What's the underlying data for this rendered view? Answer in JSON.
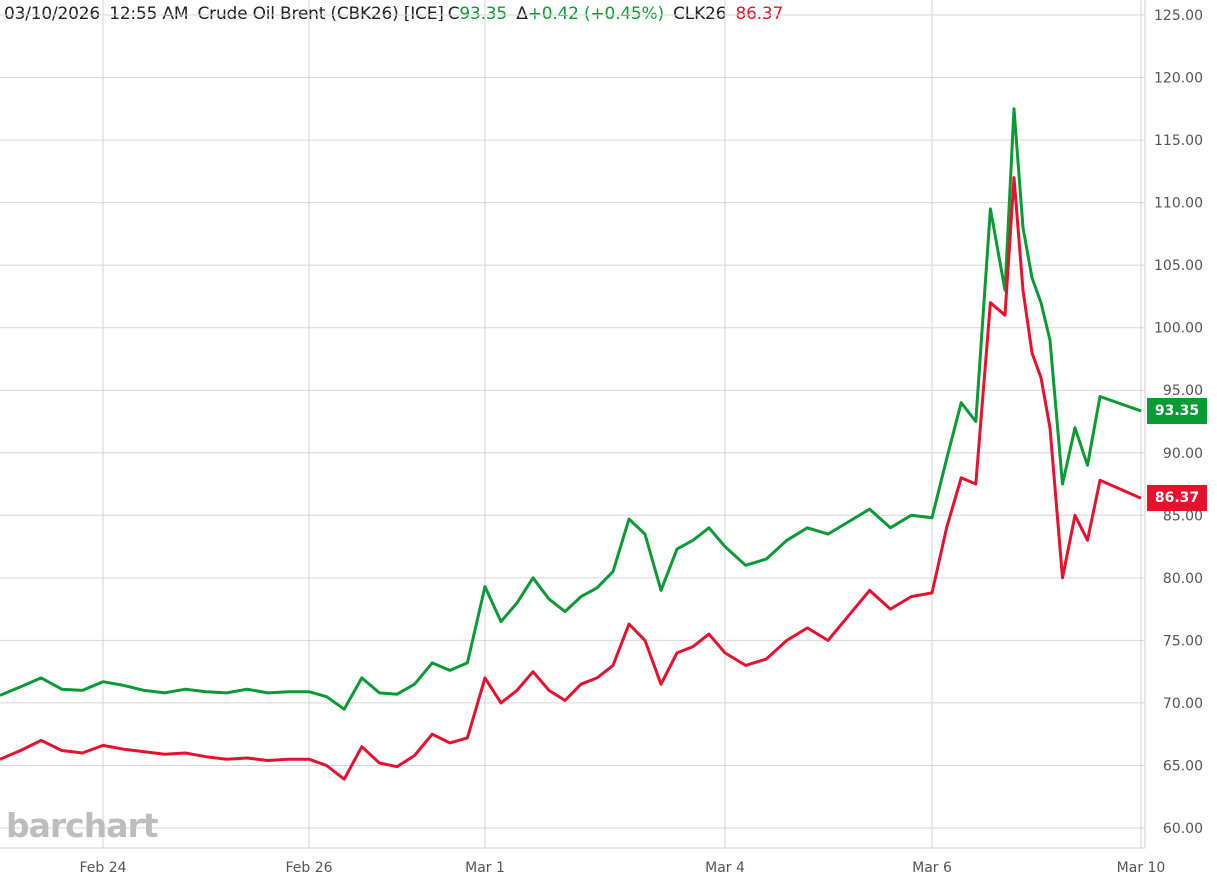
{
  "header": {
    "date": "03/10/2026",
    "time": "12:55 AM",
    "instrument": "Crude Oil Brent (CBK26) [ICE]",
    "close_label": "C",
    "close_value": "93.35",
    "change_label": "Δ",
    "change_value": "+0.42 (+0.45%)",
    "compare_symbol": "CLK26",
    "compare_value": "86.37"
  },
  "logo": "barchart",
  "colors": {
    "brent": "#0a9b34",
    "wti": "#e8112d",
    "grid": "#d6d6d6"
  },
  "chart_data": {
    "type": "line",
    "y_ticks": [
      "125.00",
      "120.00",
      "115.00",
      "110.00",
      "105.00",
      "100.00",
      "95.00",
      "90.00",
      "85.00",
      "80.00",
      "75.00",
      "70.00",
      "65.00",
      "60.00"
    ],
    "x_ticks": [
      "Feb 24",
      "Feb 26",
      "Mar 1",
      "Mar 4",
      "Mar 6",
      "Mar 10"
    ],
    "ylim": [
      60,
      125
    ],
    "legend": "header",
    "grid": true,
    "series": [
      {
        "name": "CBK26",
        "color": "#0a9b34",
        "last_label": "93.35",
        "points": [
          [
            "Feb 23",
            70.6
          ],
          [
            "Feb 23",
            71.3
          ],
          [
            "Feb 23",
            72.0
          ],
          [
            "Feb 23",
            71.1
          ],
          [
            "Feb 23",
            71.0
          ],
          [
            "Feb 24",
            71.7
          ],
          [
            "Feb 24",
            71.4
          ],
          [
            "Feb 24",
            71.0
          ],
          [
            "Feb 24",
            70.8
          ],
          [
            "Feb 24",
            71.1
          ],
          [
            "Feb 25",
            70.9
          ],
          [
            "Feb 25",
            70.8
          ],
          [
            "Feb 25",
            71.1
          ],
          [
            "Feb 25",
            70.8
          ],
          [
            "Feb 25",
            70.9
          ],
          [
            "Feb 26",
            70.9
          ],
          [
            "Feb 26",
            70.5
          ],
          [
            "Feb 26",
            69.5
          ],
          [
            "Feb 26",
            72.0
          ],
          [
            "Feb 26",
            70.8
          ],
          [
            "Feb 27",
            70.7
          ],
          [
            "Feb 27",
            71.5
          ],
          [
            "Feb 27",
            73.2
          ],
          [
            "Feb 27",
            72.6
          ],
          [
            "Feb 27",
            73.2
          ],
          [
            "Mar 1",
            79.3
          ],
          [
            "Mar 1",
            76.5
          ],
          [
            "Mar 1",
            78.0
          ],
          [
            "Mar 1",
            80.0
          ],
          [
            "Mar 1",
            78.3
          ],
          [
            "Mar 2",
            77.3
          ],
          [
            "Mar 2",
            78.5
          ],
          [
            "Mar 2",
            79.2
          ],
          [
            "Mar 2",
            80.5
          ],
          [
            "Mar 2",
            84.7
          ],
          [
            "Mar 3",
            83.5
          ],
          [
            "Mar 3",
            79.0
          ],
          [
            "Mar 3",
            82.3
          ],
          [
            "Mar 3",
            83.0
          ],
          [
            "Mar 3",
            84.0
          ],
          [
            "Mar 4",
            82.5
          ],
          [
            "Mar 4",
            81.0
          ],
          [
            "Mar 4",
            81.5
          ],
          [
            "Mar 4",
            83.0
          ],
          [
            "Mar 4",
            84.0
          ],
          [
            "Mar 5",
            83.5
          ],
          [
            "Mar 5",
            84.5
          ],
          [
            "Mar 5",
            85.5
          ],
          [
            "Mar 5",
            84.0
          ],
          [
            "Mar 5",
            85.0
          ],
          [
            "Mar 6",
            84.8
          ],
          [
            "Mar 6",
            89.5
          ],
          [
            "Mar 6",
            94.0
          ],
          [
            "Mar 6",
            92.5
          ],
          [
            "Mar 6",
            109.5
          ],
          [
            "Mar 7",
            103.0
          ],
          [
            "Mar 7",
            117.5
          ],
          [
            "Mar 7",
            108.0
          ],
          [
            "Mar 7",
            104.0
          ],
          [
            "Mar 7",
            102.0
          ],
          [
            "Mar 8",
            99.0
          ],
          [
            "Mar 8",
            87.5
          ],
          [
            "Mar 8",
            92.0
          ],
          [
            "Mar 8",
            89.0
          ],
          [
            "Mar 9",
            94.5
          ],
          [
            "Mar 10",
            93.35
          ]
        ]
      },
      {
        "name": "CLK26",
        "color": "#e8112d",
        "last_label": "86.37",
        "points": [
          [
            "Feb 23",
            65.5
          ],
          [
            "Feb 23",
            66.2
          ],
          [
            "Feb 23",
            67.0
          ],
          [
            "Feb 23",
            66.2
          ],
          [
            "Feb 23",
            66.0
          ],
          [
            "Feb 24",
            66.6
          ],
          [
            "Feb 24",
            66.3
          ],
          [
            "Feb 24",
            66.1
          ],
          [
            "Feb 24",
            65.9
          ],
          [
            "Feb 24",
            66.0
          ],
          [
            "Feb 25",
            65.7
          ],
          [
            "Feb 25",
            65.5
          ],
          [
            "Feb 25",
            65.6
          ],
          [
            "Feb 25",
            65.4
          ],
          [
            "Feb 25",
            65.5
          ],
          [
            "Feb 26",
            65.5
          ],
          [
            "Feb 26",
            65.0
          ],
          [
            "Feb 26",
            63.9
          ],
          [
            "Feb 26",
            66.5
          ],
          [
            "Feb 26",
            65.2
          ],
          [
            "Feb 27",
            64.9
          ],
          [
            "Feb 27",
            65.8
          ],
          [
            "Feb 27",
            67.5
          ],
          [
            "Feb 27",
            66.8
          ],
          [
            "Feb 27",
            67.2
          ],
          [
            "Mar 1",
            72.0
          ],
          [
            "Mar 1",
            70.0
          ],
          [
            "Mar 1",
            71.0
          ],
          [
            "Mar 1",
            72.5
          ],
          [
            "Mar 1",
            71.0
          ],
          [
            "Mar 2",
            70.2
          ],
          [
            "Mar 2",
            71.5
          ],
          [
            "Mar 2",
            72.0
          ],
          [
            "Mar 2",
            73.0
          ],
          [
            "Mar 2",
            76.3
          ],
          [
            "Mar 3",
            75.0
          ],
          [
            "Mar 3",
            71.5
          ],
          [
            "Mar 3",
            74.0
          ],
          [
            "Mar 3",
            74.5
          ],
          [
            "Mar 3",
            75.5
          ],
          [
            "Mar 4",
            74.0
          ],
          [
            "Mar 4",
            73.0
          ],
          [
            "Mar 4",
            73.5
          ],
          [
            "Mar 4",
            75.0
          ],
          [
            "Mar 4",
            76.0
          ],
          [
            "Mar 5",
            75.0
          ],
          [
            "Mar 5",
            77.0
          ],
          [
            "Mar 5",
            79.0
          ],
          [
            "Mar 5",
            77.5
          ],
          [
            "Mar 5",
            78.5
          ],
          [
            "Mar 6",
            78.8
          ],
          [
            "Mar 6",
            84.0
          ],
          [
            "Mar 6",
            88.0
          ],
          [
            "Mar 6",
            87.5
          ],
          [
            "Mar 6",
            102.0
          ],
          [
            "Mar 7",
            101.0
          ],
          [
            "Mar 7",
            112.0
          ],
          [
            "Mar 7",
            103.0
          ],
          [
            "Mar 7",
            98.0
          ],
          [
            "Mar 7",
            96.0
          ],
          [
            "Mar 8",
            92.0
          ],
          [
            "Mar 8",
            80.0
          ],
          [
            "Mar 8",
            85.0
          ],
          [
            "Mar 8",
            83.0
          ],
          [
            "Mar 9",
            87.8
          ],
          [
            "Mar 10",
            86.37
          ]
        ]
      }
    ]
  }
}
